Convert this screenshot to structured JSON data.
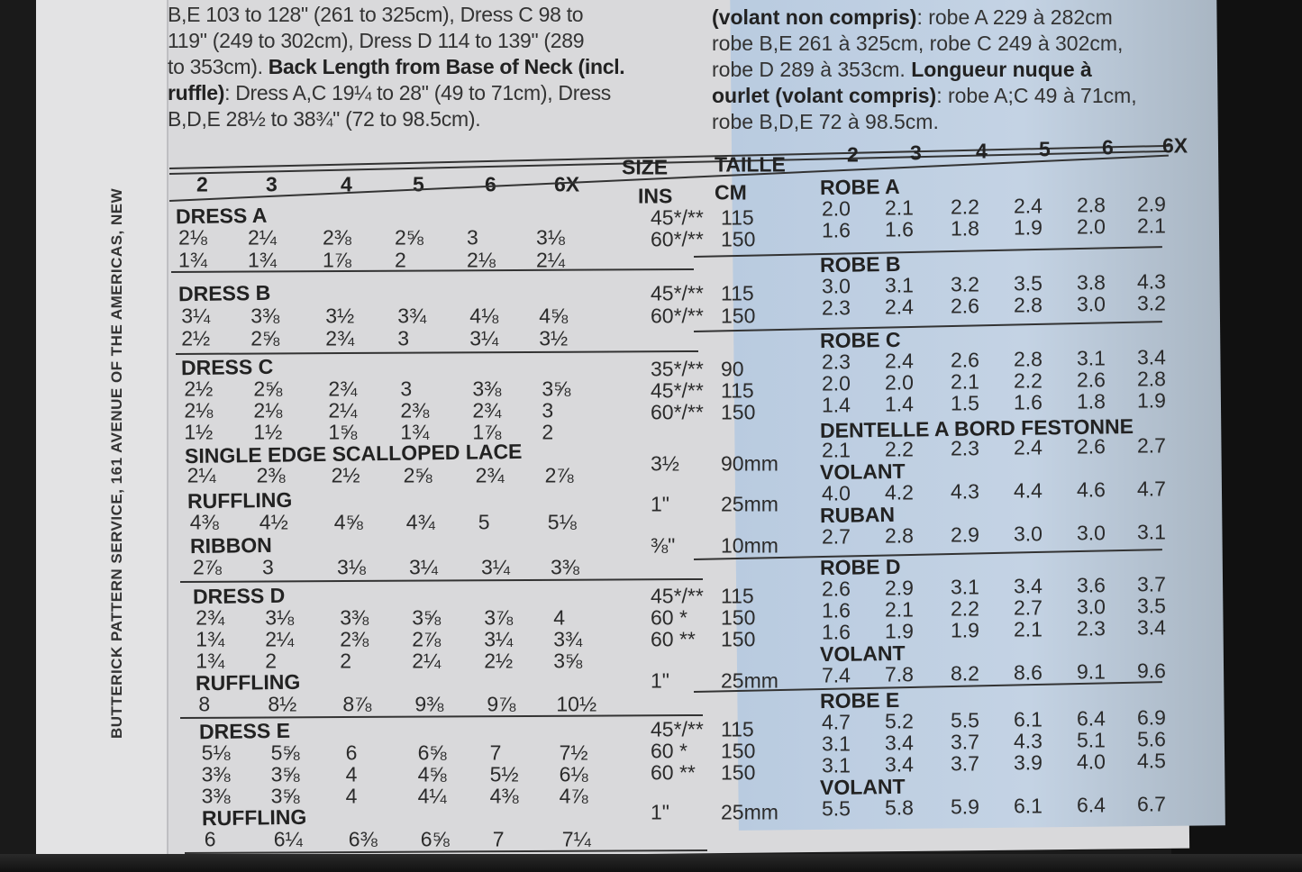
{
  "side_text": "BUTTERICK PATTERN SERVICE, 161 AVENUE OF THE AMERICAS, NEW",
  "intro_en": [
    {
      "plain": "B,E 103 to 128\" (261 to 325cm), Dress C 98 to",
      "bold": ""
    },
    {
      "plain": "119\" (249 to 302cm), Dress D 114 to 139\" (289",
      "bold": ""
    },
    {
      "plain": "to 353cm). ",
      "bold": "Back Length from Base of Neck (incl."
    },
    {
      "plain": ": Dress A,C 19¼ to 28\" (49 to 71cm), Dress",
      "bold": "ruffle)",
      "bold_first": true
    },
    {
      "plain": "B,D,E 28½ to 38¾\" (72 to 98.5cm).",
      "bold": ""
    }
  ],
  "intro_fr": [
    {
      "plain": ": robe A 229 à 282cm",
      "bold": "(volant non compris)",
      "bold_first": true
    },
    {
      "plain": "robe B,E 261 à 325cm, robe C 249 à 302cm,",
      "bold": ""
    },
    {
      "plain": "robe D 289 à 353cm. ",
      "bold": "Longueur nuque à"
    },
    {
      "plain": ": robe A;C 49 à 71cm,",
      "bold": "ourlet (volant compris)",
      "bold_first": true
    },
    {
      "plain": "robe B,D,E 72 à 98.5cm.",
      "bold": ""
    }
  ],
  "table": {
    "sizes": [
      "2",
      "3",
      "4",
      "5",
      "6",
      "6X"
    ],
    "size_label": "SIZE",
    "taille_label": "TAILLE",
    "ins_label": "INS",
    "cm_label": "CM",
    "sections_en": [
      {
        "label": "DRESS A",
        "rows": [
          [
            "2⅛",
            "2¼",
            "2⅜",
            "2⅝",
            "3",
            "3⅛"
          ],
          [
            "1¾",
            "1¾",
            "1⅞",
            "2",
            "2⅛",
            "2¼"
          ]
        ],
        "widths": [
          [
            "45*/**",
            "115"
          ],
          [
            "60*/**",
            "150"
          ]
        ]
      },
      {
        "label": "DRESS B",
        "rows": [
          [
            "3¼",
            "3⅜",
            "3½",
            "3¾",
            "4⅛",
            "4⅝"
          ],
          [
            "2½",
            "2⅝",
            "2¾",
            "3",
            "3¼",
            "3½"
          ]
        ],
        "widths": [
          [
            "45*/**",
            "115"
          ],
          [
            "60*/**",
            "150"
          ]
        ]
      },
      {
        "label": "DRESS C",
        "rows": [
          [
            "2½",
            "2⅝",
            "2¾",
            "3",
            "3⅜",
            "3⅝"
          ],
          [
            "2⅛",
            "2⅛",
            "2¼",
            "2⅜",
            "2¾",
            "3"
          ],
          [
            "1½",
            "1½",
            "1⅝",
            "1¾",
            "1⅞",
            "2"
          ]
        ],
        "widths": [
          [
            "35*/**",
            "90"
          ],
          [
            "45*/**",
            "115"
          ],
          [
            "60*/**",
            "150"
          ]
        ]
      },
      {
        "label": "SINGLE EDGE SCALLOPED LACE",
        "rows": [
          [
            "2¼",
            "2⅜",
            "2½",
            "2⅝",
            "2¾",
            "2⅞"
          ]
        ],
        "widths": [
          [
            "3½",
            "90mm"
          ]
        ]
      },
      {
        "label": "RUFFLING",
        "rows": [
          [
            "4⅜",
            "4½",
            "4⅝",
            "4¾",
            "5",
            "5⅛"
          ]
        ],
        "widths": [
          [
            "1\"",
            "25mm"
          ]
        ]
      },
      {
        "label": "RIBBON",
        "rows": [
          [
            "2⅞",
            "3",
            "3⅛",
            "3¼",
            "3¼",
            "3⅜"
          ]
        ],
        "widths": [
          [
            "⅜\"",
            "10mm"
          ]
        ]
      },
      {
        "label": "DRESS D",
        "rows": [
          [
            "2¾",
            "3⅛",
            "3⅜",
            "3⅝",
            "3⅞",
            "4"
          ],
          [
            "1¾",
            "2¼",
            "2⅜",
            "2⅞",
            "3¼",
            "3¾"
          ],
          [
            "1¾",
            "2",
            "2",
            "2¼",
            "2½",
            "3⅝"
          ]
        ],
        "widths": [
          [
            "45*/**",
            "115"
          ],
          [
            "60 *",
            "150"
          ],
          [
            "60 **",
            "150"
          ]
        ]
      },
      {
        "label": "RUFFLING",
        "rows": [
          [
            "8",
            "8½",
            "8⅞",
            "9⅜",
            "9⅞",
            "10½"
          ]
        ],
        "widths": [
          [
            "1\"",
            "25mm"
          ]
        ]
      },
      {
        "label": "DRESS E",
        "rows": [
          [
            "5⅛",
            "5⅝",
            "6",
            "6⅝",
            "7",
            "7½"
          ],
          [
            "3⅜",
            "3⅝",
            "4",
            "4⅝",
            "5½",
            "6⅛"
          ],
          [
            "3⅜",
            "3⅝",
            "4",
            "4¼",
            "4⅜",
            "4⅞"
          ]
        ],
        "widths": [
          [
            "45*/**",
            "115"
          ],
          [
            "60 *",
            "150"
          ],
          [
            "60 **",
            "150"
          ]
        ]
      },
      {
        "label": "RUFFLING",
        "rows": [
          [
            "6",
            "6¼",
            "6⅜",
            "6⅝",
            "7",
            "7¼"
          ]
        ],
        "widths": [
          [
            "1\"",
            "25mm"
          ]
        ]
      }
    ],
    "sections_fr": [
      {
        "label": "ROBE A",
        "rows": [
          [
            "2.0",
            "2.1",
            "2.2",
            "2.4",
            "2.8",
            "2.9"
          ],
          [
            "1.6",
            "1.6",
            "1.8",
            "1.9",
            "2.0",
            "2.1"
          ]
        ]
      },
      {
        "label": "ROBE B",
        "rows": [
          [
            "3.0",
            "3.1",
            "3.2",
            "3.5",
            "3.8",
            "4.3"
          ],
          [
            "2.3",
            "2.4",
            "2.6",
            "2.8",
            "3.0",
            "3.2"
          ]
        ]
      },
      {
        "label": "ROBE C",
        "rows": [
          [
            "2.3",
            "2.4",
            "2.6",
            "2.8",
            "3.1",
            "3.4"
          ],
          [
            "2.0",
            "2.0",
            "2.1",
            "2.2",
            "2.6",
            "2.8"
          ],
          [
            "1.4",
            "1.4",
            "1.5",
            "1.6",
            "1.8",
            "1.9"
          ]
        ]
      },
      {
        "label": "DENTELLE A BORD FESTONNE",
        "rows": [
          [
            "2.1",
            "2.2",
            "2.3",
            "2.4",
            "2.6",
            "2.7"
          ]
        ]
      },
      {
        "label": "VOLANT",
        "rows": [
          [
            "4.0",
            "4.2",
            "4.3",
            "4.4",
            "4.6",
            "4.7"
          ]
        ]
      },
      {
        "label": "RUBAN",
        "rows": [
          [
            "2.7",
            "2.8",
            "2.9",
            "3.0",
            "3.0",
            "3.1"
          ]
        ]
      },
      {
        "label": "ROBE D",
        "rows": [
          [
            "2.6",
            "2.9",
            "3.1",
            "3.4",
            "3.6",
            "3.7"
          ],
          [
            "1.6",
            "2.1",
            "2.2",
            "2.7",
            "3.0",
            "3.5"
          ],
          [
            "1.6",
            "1.9",
            "1.9",
            "2.1",
            "2.3",
            "3.4"
          ]
        ]
      },
      {
        "label": "VOLANT",
        "rows": [
          [
            "7.4",
            "7.8",
            "8.2",
            "8.6",
            "9.1",
            "9.6"
          ]
        ]
      },
      {
        "label": "ROBE E",
        "rows": [
          [
            "4.7",
            "5.2",
            "5.5",
            "6.1",
            "6.4",
            "6.9"
          ],
          [
            "3.1",
            "3.4",
            "3.7",
            "4.3",
            "5.1",
            "5.6"
          ],
          [
            "3.1",
            "3.4",
            "3.7",
            "3.9",
            "4.0",
            "4.5"
          ]
        ]
      },
      {
        "label": "VOLANT",
        "rows": [
          [
            "5.5",
            "5.8",
            "5.9",
            "6.1",
            "6.4",
            "6.7"
          ]
        ]
      }
    ]
  },
  "colors": {
    "paper": "#d9d9db",
    "blue_panel": "#c0d0e2",
    "ink": "#2b2b2b"
  }
}
